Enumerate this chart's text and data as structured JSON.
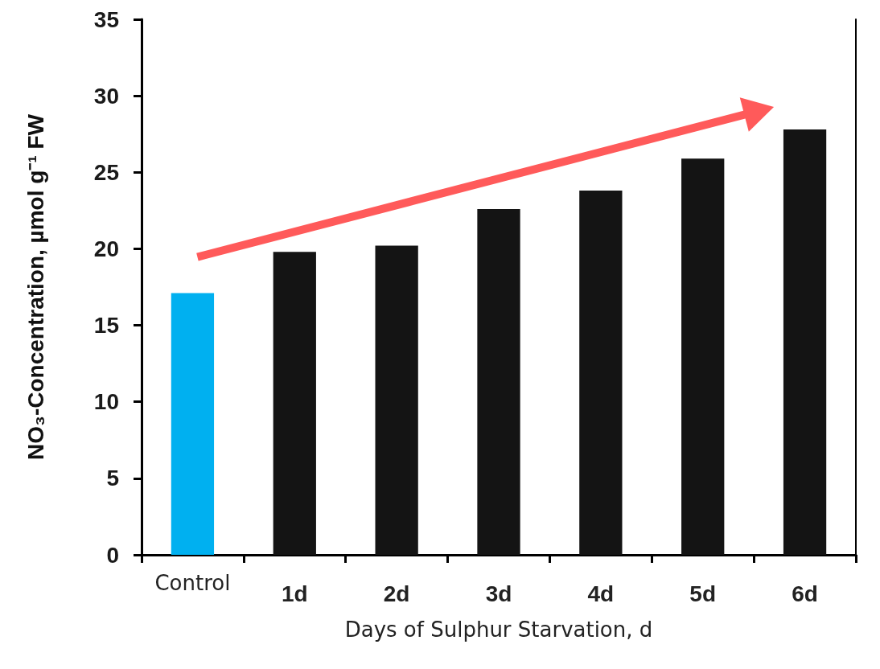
{
  "chart_data": {
    "type": "bar",
    "xlabel": "Days of Sulphur Starvation, d",
    "ylabel": "NO₃-Concentration, µmol g⁻¹ FW",
    "categories": [
      "Control",
      "1d",
      "2d",
      "3d",
      "4d",
      "5d",
      "6d"
    ],
    "values": [
      17.1,
      19.8,
      20.2,
      22.6,
      23.8,
      25.9,
      27.8
    ],
    "colors": [
      "#00b0f0",
      "#141414",
      "#141414",
      "#141414",
      "#141414",
      "#141414",
      "#141414"
    ],
    "ylim": [
      0,
      35
    ],
    "yticks": [
      0,
      5,
      10,
      15,
      20,
      25,
      30,
      35
    ]
  }
}
